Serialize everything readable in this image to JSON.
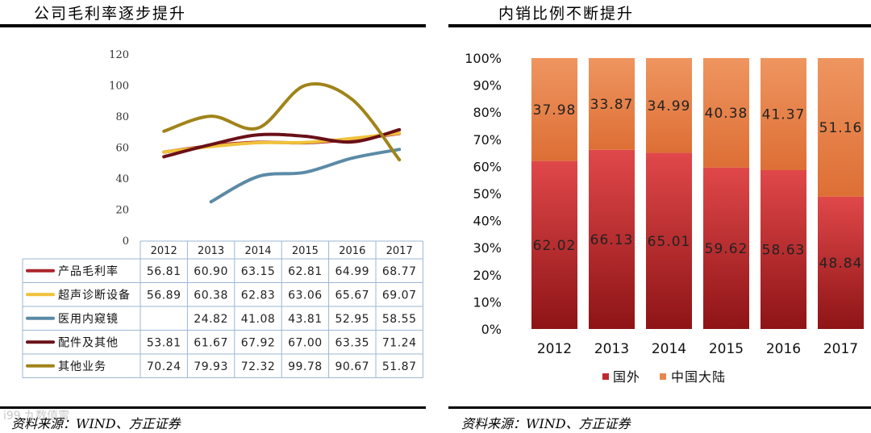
{
  "left": {
    "title": "公司毛利率逐步提升",
    "source": "资料来源：WIND、方正证券",
    "watermark": "i99 九数值雷"
  },
  "right": {
    "title": "内销比例不断提升",
    "source": "资料来源：WIND、方正证券"
  },
  "colors": {
    "product_gm": "#a9262b",
    "ultrasound": "#f0c23a",
    "endoscope": "#5b8aa6",
    "parts": "#6a1018",
    "other": "#a0841a",
    "domestic_bar": "#e8874a",
    "foreign_bar": "#c0282c"
  },
  "chart_data": [
    {
      "type": "line",
      "title": "公司毛利率逐步提升",
      "categories": [
        "2012",
        "2013",
        "2014",
        "2015",
        "2016",
        "2017"
      ],
      "y_ticks": [
        "120",
        "100",
        "80",
        "60",
        "40",
        "20",
        "0"
      ],
      "ylim": [
        0,
        120
      ],
      "series": [
        {
          "name": "产品毛利率",
          "values": [
            56.81,
            60.9,
            63.15,
            62.81,
            64.99,
            68.77
          ],
          "labels": [
            "56.81",
            "60.90",
            "63.15",
            "62.81",
            "64.99",
            "68.77"
          ]
        },
        {
          "name": "超声诊断设备",
          "values": [
            56.89,
            60.38,
            62.83,
            63.06,
            65.67,
            69.07
          ],
          "labels": [
            "56.89",
            "60.38",
            "62.83",
            "63.06",
            "65.67",
            "69.07"
          ]
        },
        {
          "name": "医用内窥镜",
          "values": [
            null,
            24.82,
            41.08,
            43.81,
            52.95,
            58.55
          ],
          "labels": [
            "",
            "24.82",
            "41.08",
            "43.81",
            "52.95",
            "58.55"
          ]
        },
        {
          "name": "配件及其他",
          "values": [
            53.81,
            61.67,
            67.92,
            67.0,
            63.35,
            71.24
          ],
          "labels": [
            "53.81",
            "61.67",
            "67.92",
            "67.00",
            "63.35",
            "71.24"
          ]
        },
        {
          "name": "其他业务",
          "values": [
            70.24,
            79.93,
            72.32,
            99.78,
            90.67,
            51.87
          ],
          "labels": [
            "70.24",
            "79.93",
            "72.32",
            "99.78",
            "90.67",
            "51.87"
          ]
        }
      ]
    },
    {
      "type": "bar",
      "stacked": true,
      "title": "内销比例不断提升",
      "categories": [
        "2012",
        "2013",
        "2014",
        "2015",
        "2016",
        "2017"
      ],
      "y_ticks": [
        "100%",
        "90%",
        "80%",
        "70%",
        "60%",
        "50%",
        "40%",
        "30%",
        "20%",
        "10%",
        "0%"
      ],
      "ylim": [
        0,
        100
      ],
      "series": [
        {
          "name": "国外",
          "values": [
            62.02,
            66.13,
            65.01,
            59.62,
            58.63,
            48.84
          ],
          "labels": [
            "62.02",
            "66.13",
            "65.01",
            "59.62",
            "58.63",
            "48.84"
          ]
        },
        {
          "name": "中国大陆",
          "values": [
            37.98,
            33.87,
            34.99,
            40.38,
            41.37,
            51.16
          ],
          "labels": [
            "37.98",
            "33.87",
            "34.99",
            "40.38",
            "41.37",
            "51.16"
          ]
        }
      ],
      "legend": [
        "国外",
        "中国大陆"
      ]
    }
  ]
}
